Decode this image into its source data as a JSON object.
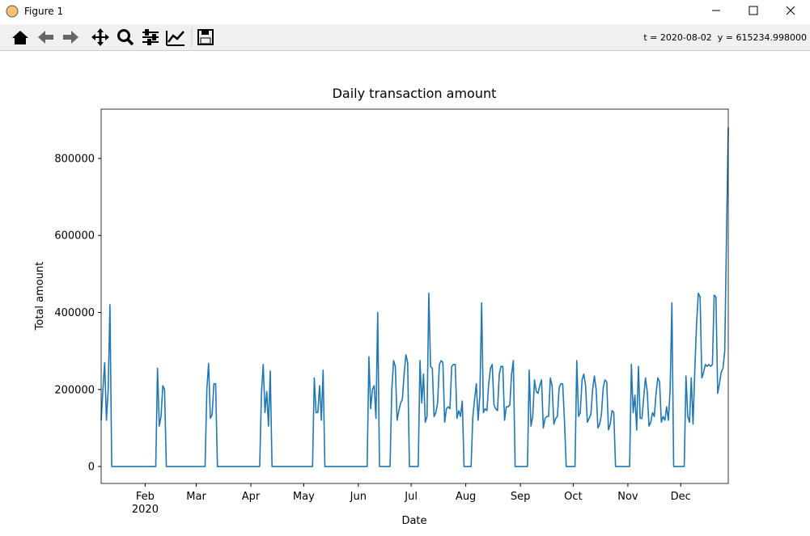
{
  "window": {
    "title": "Figure 1",
    "status": "t = 2020-08-02  y = 615234.998000"
  },
  "chart_data": {
    "type": "line",
    "title": "Daily transaction amount",
    "xlabel": "Date",
    "ylabel": "Total amount",
    "color": "#1f77b4",
    "xlim": [
      "2020-01-07",
      "2020-12-28"
    ],
    "ylim": [
      -44000,
      928000
    ],
    "yticks": [
      0,
      200000,
      400000,
      600000,
      800000
    ],
    "xticks": [
      {
        "value": "2020-02-01",
        "label": "Feb"
      },
      {
        "value": "2020-03-01",
        "label": "Mar"
      },
      {
        "value": "2020-04-01",
        "label": "Apr"
      },
      {
        "value": "2020-05-01",
        "label": "May"
      },
      {
        "value": "2020-06-01",
        "label": "Jun"
      },
      {
        "value": "2020-07-01",
        "label": "Jul"
      },
      {
        "value": "2020-08-01",
        "label": "Aug"
      },
      {
        "value": "2020-09-01",
        "label": "Sep"
      },
      {
        "value": "2020-10-01",
        "label": "Oct"
      },
      {
        "value": "2020-11-01",
        "label": "Nov"
      },
      {
        "value": "2020-12-01",
        "label": "Dec"
      }
    ],
    "xtick_sublabel": "2020",
    "x": [
      "2020-01-07",
      "2020-01-08",
      "2020-01-09",
      "2020-01-10",
      "2020-01-11",
      "2020-01-12",
      "2020-01-13",
      "2020-01-14",
      "2020-01-15",
      "2020-01-16",
      "2020-01-17",
      "2020-01-18",
      "2020-01-19",
      "2020-01-20",
      "2020-01-21",
      "2020-01-22",
      "2020-01-23",
      "2020-01-24",
      "2020-01-25",
      "2020-01-26",
      "2020-01-27",
      "2020-01-28",
      "2020-01-29",
      "2020-01-30",
      "2020-01-31",
      "2020-02-01",
      "2020-02-02",
      "2020-02-03",
      "2020-02-04",
      "2020-02-05",
      "2020-02-06",
      "2020-02-07",
      "2020-02-08",
      "2020-02-09",
      "2020-02-10",
      "2020-02-11",
      "2020-02-12",
      "2020-02-13",
      "2020-02-14",
      "2020-02-15",
      "2020-02-16",
      "2020-02-17",
      "2020-02-18",
      "2020-02-19",
      "2020-02-20",
      "2020-02-21",
      "2020-02-22",
      "2020-02-23",
      "2020-02-24",
      "2020-02-25",
      "2020-02-26",
      "2020-02-27",
      "2020-02-28",
      "2020-02-29",
      "2020-03-01",
      "2020-03-02",
      "2020-03-03",
      "2020-03-04",
      "2020-03-05",
      "2020-03-06",
      "2020-03-07",
      "2020-03-08",
      "2020-03-09",
      "2020-03-10",
      "2020-03-11",
      "2020-03-12",
      "2020-03-13",
      "2020-03-14",
      "2020-03-15",
      "2020-03-16",
      "2020-03-17",
      "2020-03-18",
      "2020-03-19",
      "2020-03-20",
      "2020-03-21",
      "2020-03-22",
      "2020-03-23",
      "2020-03-24",
      "2020-03-25",
      "2020-03-26",
      "2020-03-27",
      "2020-03-28",
      "2020-03-29",
      "2020-03-30",
      "2020-03-31",
      "2020-04-01",
      "2020-04-02",
      "2020-04-03",
      "2020-04-04",
      "2020-04-05",
      "2020-04-06",
      "2020-04-07",
      "2020-04-08",
      "2020-04-09",
      "2020-04-10",
      "2020-04-11",
      "2020-04-12",
      "2020-04-13",
      "2020-04-14",
      "2020-04-15",
      "2020-04-16",
      "2020-04-17",
      "2020-04-18",
      "2020-04-19",
      "2020-04-20",
      "2020-04-21",
      "2020-04-22",
      "2020-04-23",
      "2020-04-24",
      "2020-04-25",
      "2020-04-26",
      "2020-04-27",
      "2020-04-28",
      "2020-04-29",
      "2020-04-30",
      "2020-05-01",
      "2020-05-02",
      "2020-05-03",
      "2020-05-04",
      "2020-05-05",
      "2020-05-06",
      "2020-05-07",
      "2020-05-08",
      "2020-05-09",
      "2020-05-10",
      "2020-05-11",
      "2020-05-12",
      "2020-05-13",
      "2020-05-14",
      "2020-05-15",
      "2020-05-16",
      "2020-05-17",
      "2020-05-18",
      "2020-05-19",
      "2020-05-20",
      "2020-05-21",
      "2020-05-22",
      "2020-05-23",
      "2020-05-24",
      "2020-05-25",
      "2020-05-26",
      "2020-05-27",
      "2020-05-28",
      "2020-05-29",
      "2020-05-30",
      "2020-05-31",
      "2020-06-01",
      "2020-06-02",
      "2020-06-03",
      "2020-06-04",
      "2020-06-05",
      "2020-06-06",
      "2020-06-07",
      "2020-06-08",
      "2020-06-09",
      "2020-06-10",
      "2020-06-11",
      "2020-06-12",
      "2020-06-13",
      "2020-06-14",
      "2020-06-15",
      "2020-06-16",
      "2020-06-17",
      "2020-06-18",
      "2020-06-19",
      "2020-06-20",
      "2020-06-21",
      "2020-06-22",
      "2020-06-23",
      "2020-06-24",
      "2020-06-25",
      "2020-06-26",
      "2020-06-27",
      "2020-06-28",
      "2020-06-29",
      "2020-06-30",
      "2020-07-01",
      "2020-07-02",
      "2020-07-03",
      "2020-07-04",
      "2020-07-05",
      "2020-07-06",
      "2020-07-07",
      "2020-07-08",
      "2020-07-09",
      "2020-07-10",
      "2020-07-11",
      "2020-07-12",
      "2020-07-13",
      "2020-07-14",
      "2020-07-15",
      "2020-07-16",
      "2020-07-17",
      "2020-07-18",
      "2020-07-19",
      "2020-07-20",
      "2020-07-21",
      "2020-07-22",
      "2020-07-23",
      "2020-07-24",
      "2020-07-25",
      "2020-07-26",
      "2020-07-27",
      "2020-07-28",
      "2020-07-29",
      "2020-07-30",
      "2020-07-31",
      "2020-08-01",
      "2020-08-02",
      "2020-08-03",
      "2020-08-04",
      "2020-08-05",
      "2020-08-06",
      "2020-08-07",
      "2020-08-08",
      "2020-08-09",
      "2020-08-10",
      "2020-08-11",
      "2020-08-12",
      "2020-08-13",
      "2020-08-14",
      "2020-08-15",
      "2020-08-16",
      "2020-08-17",
      "2020-08-18",
      "2020-08-19",
      "2020-08-20",
      "2020-08-21",
      "2020-08-22",
      "2020-08-23",
      "2020-08-24",
      "2020-08-25",
      "2020-08-26",
      "2020-08-27",
      "2020-08-28",
      "2020-08-29",
      "2020-08-30",
      "2020-08-31",
      "2020-09-01",
      "2020-09-02",
      "2020-09-03",
      "2020-09-04",
      "2020-09-05",
      "2020-09-06",
      "2020-09-07",
      "2020-09-08",
      "2020-09-09",
      "2020-09-10",
      "2020-09-11",
      "2020-09-12",
      "2020-09-13",
      "2020-09-14",
      "2020-09-15",
      "2020-09-16",
      "2020-09-17",
      "2020-09-18",
      "2020-09-19",
      "2020-09-20",
      "2020-09-21",
      "2020-09-22",
      "2020-09-23",
      "2020-09-24",
      "2020-09-25",
      "2020-09-26",
      "2020-09-27",
      "2020-09-28",
      "2020-09-29",
      "2020-09-30",
      "2020-10-01",
      "2020-10-02",
      "2020-10-03",
      "2020-10-04",
      "2020-10-05",
      "2020-10-06",
      "2020-10-07",
      "2020-10-08",
      "2020-10-09",
      "2020-10-10",
      "2020-10-11",
      "2020-10-12",
      "2020-10-13",
      "2020-10-14",
      "2020-10-15",
      "2020-10-16",
      "2020-10-17",
      "2020-10-18",
      "2020-10-19",
      "2020-10-20",
      "2020-10-21",
      "2020-10-22",
      "2020-10-23",
      "2020-10-24",
      "2020-10-25",
      "2020-10-26",
      "2020-10-27",
      "2020-10-28",
      "2020-10-29",
      "2020-10-30",
      "2020-10-31",
      "2020-11-01",
      "2020-11-02",
      "2020-11-03",
      "2020-11-04",
      "2020-11-05",
      "2020-11-06",
      "2020-11-07",
      "2020-11-08",
      "2020-11-09",
      "2020-11-10",
      "2020-11-11",
      "2020-11-12",
      "2020-11-13",
      "2020-11-14",
      "2020-11-15",
      "2020-11-16",
      "2020-11-17",
      "2020-11-18",
      "2020-11-19",
      "2020-11-20",
      "2020-11-21",
      "2020-11-22",
      "2020-11-23",
      "2020-11-24",
      "2020-11-25",
      "2020-11-26",
      "2020-11-27",
      "2020-11-28",
      "2020-11-29",
      "2020-11-30",
      "2020-12-01",
      "2020-12-02",
      "2020-12-03",
      "2020-12-04",
      "2020-12-05",
      "2020-12-06",
      "2020-12-07",
      "2020-12-08",
      "2020-12-09",
      "2020-12-10",
      "2020-12-11",
      "2020-12-12",
      "2020-12-13",
      "2020-12-14",
      "2020-12-15",
      "2020-12-16",
      "2020-12-17",
      "2020-12-18",
      "2020-12-19",
      "2020-12-20",
      "2020-12-21",
      "2020-12-22",
      "2020-12-23",
      "2020-12-24",
      "2020-12-25",
      "2020-12-26",
      "2020-12-27",
      "2020-12-28"
    ],
    "values": [
      120000,
      200000,
      270000,
      120000,
      200000,
      420000,
      0,
      0,
      0,
      0,
      0,
      0,
      0,
      0,
      0,
      0,
      0,
      0,
      0,
      0,
      0,
      0,
      0,
      0,
      0,
      0,
      0,
      0,
      0,
      0,
      0,
      0,
      255000,
      105000,
      130000,
      210000,
      200000,
      0,
      0,
      0,
      0,
      0,
      0,
      0,
      0,
      0,
      0,
      0,
      0,
      0,
      0,
      0,
      0,
      0,
      0,
      0,
      0,
      0,
      0,
      0,
      200000,
      268000,
      125000,
      135000,
      215000,
      215000,
      0,
      0,
      0,
      0,
      0,
      0,
      0,
      0,
      0,
      0,
      0,
      0,
      0,
      0,
      0,
      0,
      0,
      0,
      0,
      0,
      0,
      0,
      0,
      0,
      0,
      190000,
      265000,
      140000,
      195000,
      105000,
      248000,
      0,
      0,
      0,
      0,
      0,
      0,
      0,
      0,
      0,
      0,
      0,
      0,
      0,
      0,
      0,
      0,
      0,
      0,
      0,
      0,
      0,
      0,
      0,
      0,
      230000,
      140000,
      140000,
      210000,
      120000,
      250000,
      0,
      0,
      0,
      0,
      0,
      0,
      0,
      0,
      0,
      0,
      0,
      0,
      0,
      0,
      0,
      0,
      0,
      0,
      0,
      0,
      0,
      0,
      0,
      0,
      0,
      285000,
      150000,
      200000,
      210000,
      125000,
      400000,
      0,
      0,
      0,
      0,
      0,
      0,
      0,
      200000,
      275000,
      260000,
      120000,
      145000,
      165000,
      175000,
      240000,
      290000,
      270000,
      0,
      0,
      0,
      0,
      0,
      0,
      275000,
      165000,
      240000,
      115000,
      130000,
      450000,
      260000,
      255000,
      130000,
      140000,
      165000,
      265000,
      275000,
      270000,
      115000,
      150000,
      155000,
      150000,
      260000,
      265000,
      265000,
      125000,
      145000,
      130000,
      170000,
      0,
      0,
      0,
      0,
      0,
      130000,
      175000,
      215000,
      120000,
      185000,
      425000,
      140000,
      150000,
      145000,
      215000,
      255000,
      265000,
      160000,
      150000,
      145000,
      240000,
      260000,
      260000,
      120000,
      155000,
      155000,
      160000,
      240000,
      275000,
      0,
      0,
      0,
      0,
      0,
      0,
      0,
      0,
      250000,
      105000,
      130000,
      225000,
      195000,
      190000,
      210000,
      225000,
      100000,
      125000,
      130000,
      130000,
      230000,
      210000,
      110000,
      125000,
      130000,
      205000,
      215000,
      215000,
      120000,
      0,
      0,
      0,
      0,
      0,
      0,
      275000,
      130000,
      140000,
      225000,
      240000,
      210000,
      115000,
      125000,
      135000,
      200000,
      235000,
      200000,
      100000,
      110000,
      135000,
      205000,
      225000,
      220000,
      95000,
      110000,
      145000,
      140000,
      0,
      0,
      0,
      0,
      0,
      0,
      0,
      0,
      0,
      265000,
      140000,
      185000,
      95000,
      260000,
      125000,
      125000,
      180000,
      230000,
      195000,
      105000,
      115000,
      140000,
      130000,
      190000,
      230000,
      220000,
      115000,
      130000,
      120000,
      155000,
      120000,
      200000,
      425000,
      0,
      0,
      0,
      0,
      0,
      0,
      0,
      235000,
      130000,
      115000,
      230000,
      110000,
      250000,
      370000,
      450000,
      440000,
      230000,
      245000,
      265000,
      260000,
      265000,
      260000,
      265000,
      445000,
      440000,
      190000,
      215000,
      245000,
      255000,
      300000,
      600000,
      880000
    ]
  }
}
